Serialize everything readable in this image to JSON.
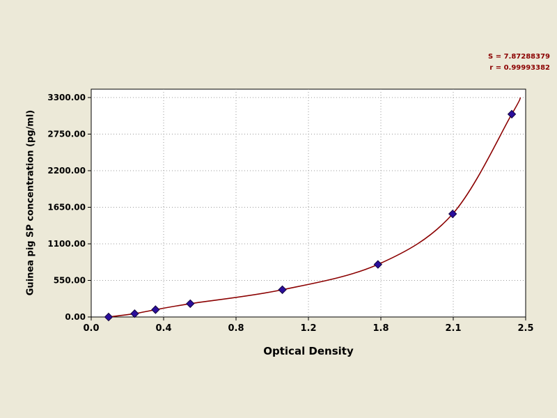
{
  "chart_data": {
    "type": "scatter",
    "title": "",
    "xlabel": "Optical Density",
    "ylabel": "Guinea pig SP concentration (pg/ml)",
    "grid": "dotted",
    "legend_position": "none",
    "stats": {
      "line1": "S = 7.87288379",
      "line2": "r = 0.99993382"
    },
    "x_axis": {
      "label": "Optical Density",
      "min": 0,
      "max": 2.5,
      "ticks": [
        "0.0",
        "0.4",
        "0.8",
        "1.2",
        "1.8",
        "2.1",
        "2.5"
      ]
    },
    "y_axis": {
      "label": "Guinea pig SP concentration (pg/ml)",
      "min": 0,
      "max": 3300,
      "ticks": [
        "0.00",
        "550.00",
        "1100.00",
        "1650.00",
        "2200.00",
        "2750.00",
        "3300.00"
      ]
    },
    "points": [
      {
        "od": 0.1,
        "conc": 0
      },
      {
        "od": 0.25,
        "conc": 50
      },
      {
        "od": 0.37,
        "conc": 110
      },
      {
        "od": 0.57,
        "conc": 200
      },
      {
        "od": 1.1,
        "conc": 410
      },
      {
        "od": 1.65,
        "conc": 790
      },
      {
        "od": 2.08,
        "conc": 1550
      },
      {
        "od": 2.42,
        "conc": 3050
      }
    ],
    "curve_end": {
      "od": 2.47,
      "conc": 3300
    },
    "colors": {
      "background": "#ece9d8",
      "plot_bg": "#ffffff",
      "grid": "#9a9a9a",
      "axis": "#000000",
      "curve": "#8b0000",
      "marker": "#2b0e9c",
      "marker_stroke": "#14053f",
      "stats_text": "#8b0000"
    }
  }
}
